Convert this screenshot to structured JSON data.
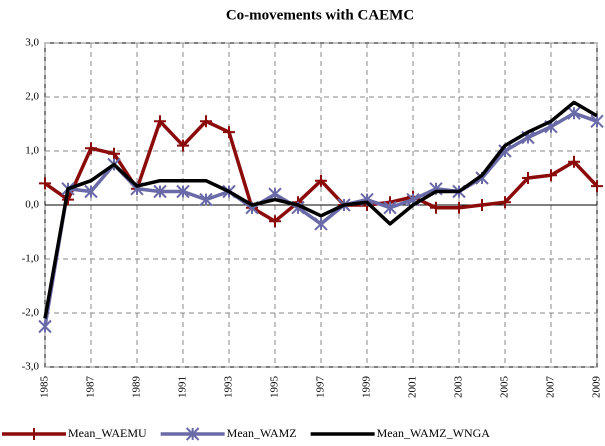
{
  "chart_data": {
    "type": "line",
    "title": "Co-movements with CAEMC",
    "x": [
      1985,
      1986,
      1987,
      1988,
      1989,
      1990,
      1991,
      1992,
      1993,
      1994,
      1995,
      1996,
      1997,
      1998,
      1999,
      2000,
      2001,
      2002,
      2003,
      2004,
      2005,
      2006,
      2007,
      2008,
      2009
    ],
    "xlim": [
      1985,
      2009
    ],
    "xticks": [
      1985,
      1987,
      1989,
      1991,
      1993,
      1995,
      1997,
      1999,
      2001,
      2003,
      2005,
      2007,
      2009
    ],
    "ylim": [
      -3,
      3
    ],
    "yticks": [
      {
        "value": -3,
        "label": "-3,0"
      },
      {
        "value": -2,
        "label": "-2,0"
      },
      {
        "value": -1,
        "label": "-1,0"
      },
      {
        "value": 0,
        "label": "0,0"
      },
      {
        "value": 1,
        "label": "1,0"
      },
      {
        "value": 2,
        "label": "2,0"
      },
      {
        "value": 3,
        "label": "3,0"
      }
    ],
    "grid": true,
    "legend": "bottom",
    "series": [
      {
        "name": "Mean_WAEMU",
        "color": "#8b0a0a",
        "marker": "plus",
        "values": [
          0.4,
          0.1,
          1.05,
          0.95,
          0.3,
          1.55,
          1.1,
          1.55,
          1.35,
          -0.05,
          -0.3,
          0.05,
          0.45,
          0.0,
          0.0,
          0.05,
          0.15,
          -0.05,
          -0.05,
          0.0,
          0.05,
          0.5,
          0.55,
          0.8,
          0.35
        ]
      },
      {
        "name": "Mean_WAMZ",
        "color": "#6a6aa8",
        "marker": "asterisk",
        "values": [
          -2.25,
          0.3,
          0.25,
          0.75,
          0.3,
          0.25,
          0.25,
          0.1,
          0.25,
          -0.05,
          0.2,
          -0.05,
          -0.35,
          0.0,
          0.1,
          -0.05,
          0.1,
          0.3,
          0.25,
          0.5,
          1.0,
          1.25,
          1.45,
          1.7,
          1.55
        ]
      },
      {
        "name": "Mean_WAMZ_WNGA",
        "color": "#000000",
        "marker": null,
        "values": [
          -2.1,
          0.3,
          0.45,
          0.75,
          0.35,
          0.45,
          0.45,
          0.45,
          0.25,
          0.0,
          0.1,
          0.0,
          -0.2,
          0.0,
          0.05,
          -0.35,
          0.0,
          0.25,
          0.25,
          0.55,
          1.1,
          1.35,
          1.55,
          1.9,
          1.65
        ]
      }
    ]
  }
}
